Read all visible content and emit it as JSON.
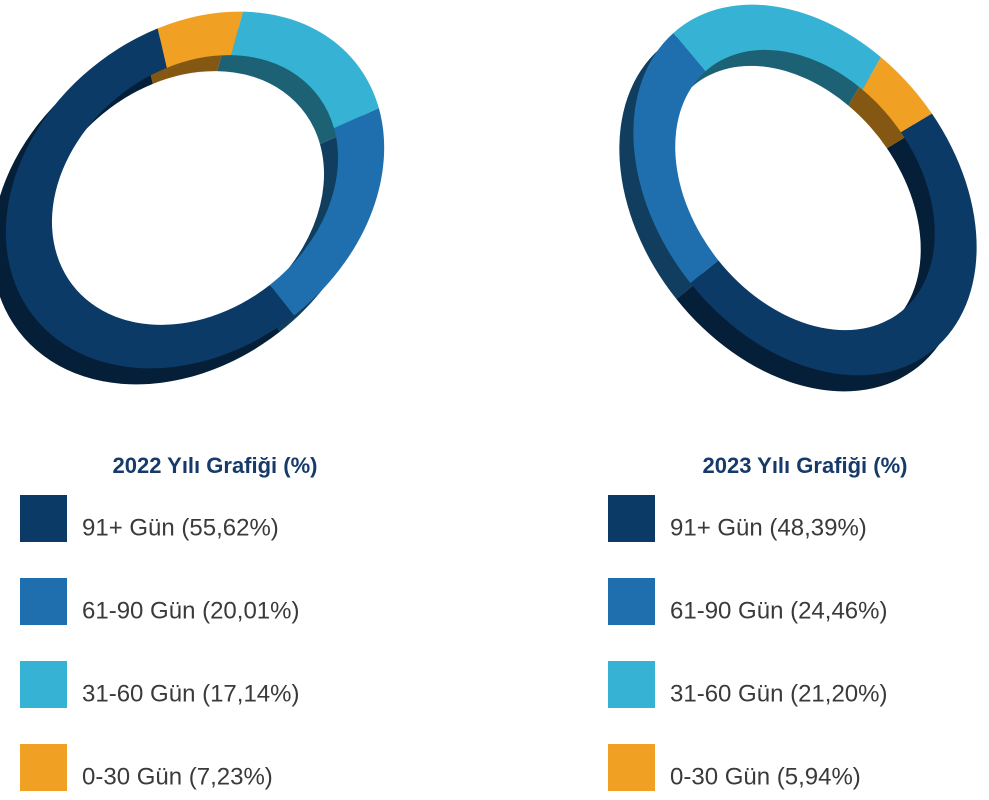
{
  "chart_data": [
    {
      "type": "pie",
      "title": "2022 Yılı Grafiği (%)",
      "categories": [
        "91+ Gün (55,62%)",
        "61-90 Gün (20,01%)",
        "31-60 Gün (17,14%)",
        "0-30 Gün (7,23%)"
      ],
      "values": [
        55.62,
        20.01,
        17.14,
        7.23
      ],
      "colors": [
        "#0b3a66",
        "#1f6fae",
        "#36b3d4",
        "#f0a023"
      ]
    },
    {
      "type": "pie",
      "title": "2023 Yılı Grafiği (%)",
      "categories": [
        "91+ Gün (48,39%)",
        "61-90 Gün (24,46%)",
        "31-60 Gün (21,20%)",
        "0-30 Gün (5,94%)"
      ],
      "values": [
        48.39,
        24.46,
        21.2,
        5.94
      ],
      "colors": [
        "#0b3a66",
        "#1f6fae",
        "#36b3d4",
        "#f0a023"
      ]
    }
  ]
}
